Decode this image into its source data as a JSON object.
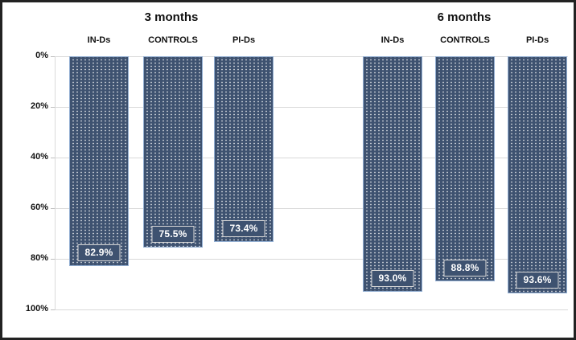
{
  "chart_data": {
    "type": "bar",
    "title": "",
    "axis_inverted": true,
    "ylim": [
      0,
      100
    ],
    "ytick_labels": [
      "0%",
      "20%",
      "40%",
      "60%",
      "80%",
      "100%"
    ],
    "grid": true,
    "legend": "none",
    "groups": [
      {
        "title": "3 months",
        "categories": [
          "IN-Ds",
          "CONTROLS",
          "PI-Ds"
        ],
        "values": [
          82.9,
          75.5,
          73.4
        ],
        "value_labels": [
          "82.9%",
          "75.5%",
          "73.4%"
        ]
      },
      {
        "title": "6 months",
        "categories": [
          "IN-Ds",
          "CONTROLS",
          "PI-Ds"
        ],
        "values": [
          93.0,
          88.8,
          93.6
        ],
        "value_labels": [
          "93.0%",
          "88.8%",
          "93.6%"
        ]
      }
    ],
    "colors": {
      "bar_fill": "#3e5270",
      "bar_border": "#92aed2",
      "bar_pattern_dot": "#ffffff",
      "value_box_border": "#d6d6d6",
      "value_text": "#ffffff",
      "gridline": "#d9d9d9",
      "text": "#111111",
      "frame_border": "#222222",
      "background": "#ffffff"
    }
  }
}
